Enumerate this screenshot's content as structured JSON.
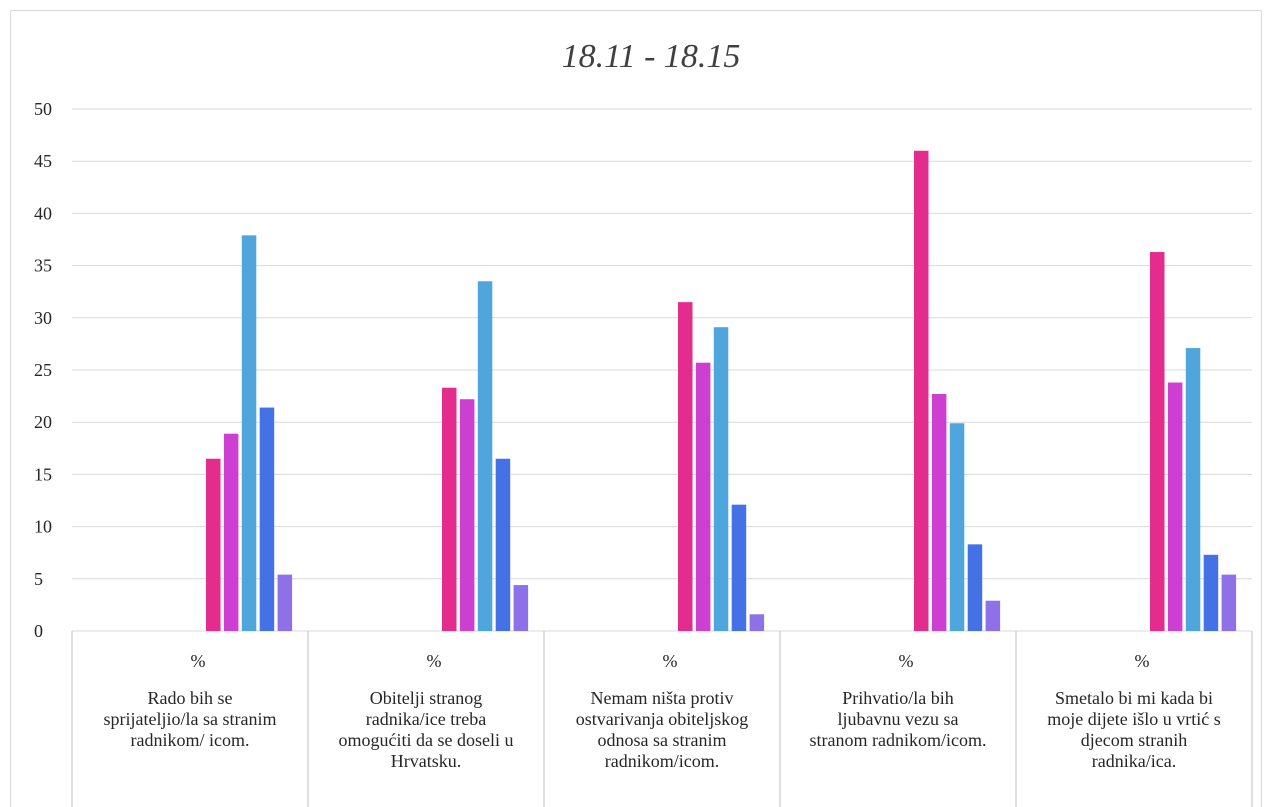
{
  "chart_data": {
    "type": "bar",
    "title": "18.11 - 18.15",
    "ylim": [
      0,
      50
    ],
    "yticks": [
      0,
      5,
      10,
      15,
      20,
      25,
      30,
      35,
      40,
      45,
      50
    ],
    "grid": true,
    "unit_label": "%",
    "categories": [
      "Rado bih se sprijateljio/la sa stranim radnikom/ icom.",
      "Obitelji stranog radnika/ice treba omogućiti da se doseli u Hrvatsku.",
      "Nemam ništa protiv ostvarivanja obiteljskog odnosa sa stranim radnikom/icom.",
      "Prihvatio/la bih ljubavnu vezu sa stranom radnikom/icom.",
      "Smetalo bi mi kada bi moje dijete išlo u vrtić s djecom stranih radnika/ica."
    ],
    "category_lines": [
      [
        "Rado bih se",
        "sprijateljio/la sa stranim",
        "radnikom/ icom."
      ],
      [
        "Obitelji stranog",
        "radnika/ice treba",
        "omogućiti da se doseli u",
        "Hrvatsku."
      ],
      [
        "Nemam ništa protiv",
        "ostvarivanja obiteljskog",
        "odnosa sa stranim",
        "radnikom/icom."
      ],
      [
        "Prihvatio/la bih",
        "ljubavnu vezu sa",
        "stranom radnikom/icom."
      ],
      [
        "Smetalo bi mi kada bi",
        "moje dijete išlo u vrtić s",
        "djecom stranih",
        "radnika/ica."
      ]
    ],
    "series": [
      {
        "color": "#e32c8c",
        "values": [
          16.5,
          23.3,
          31.5,
          46.0,
          36.3
        ]
      },
      {
        "color": "#cc3fd0",
        "values": [
          18.9,
          22.2,
          25.7,
          22.7,
          23.8
        ]
      },
      {
        "color": "#4ea6dc",
        "values": [
          37.9,
          33.5,
          29.1,
          19.9,
          27.1
        ]
      },
      {
        "color": "#4472e6",
        "values": [
          21.4,
          16.5,
          12.1,
          8.3,
          7.3
        ]
      },
      {
        "color": "#8e71e8",
        "values": [
          5.4,
          4.4,
          1.6,
          2.9,
          5.4
        ]
      }
    ]
  }
}
